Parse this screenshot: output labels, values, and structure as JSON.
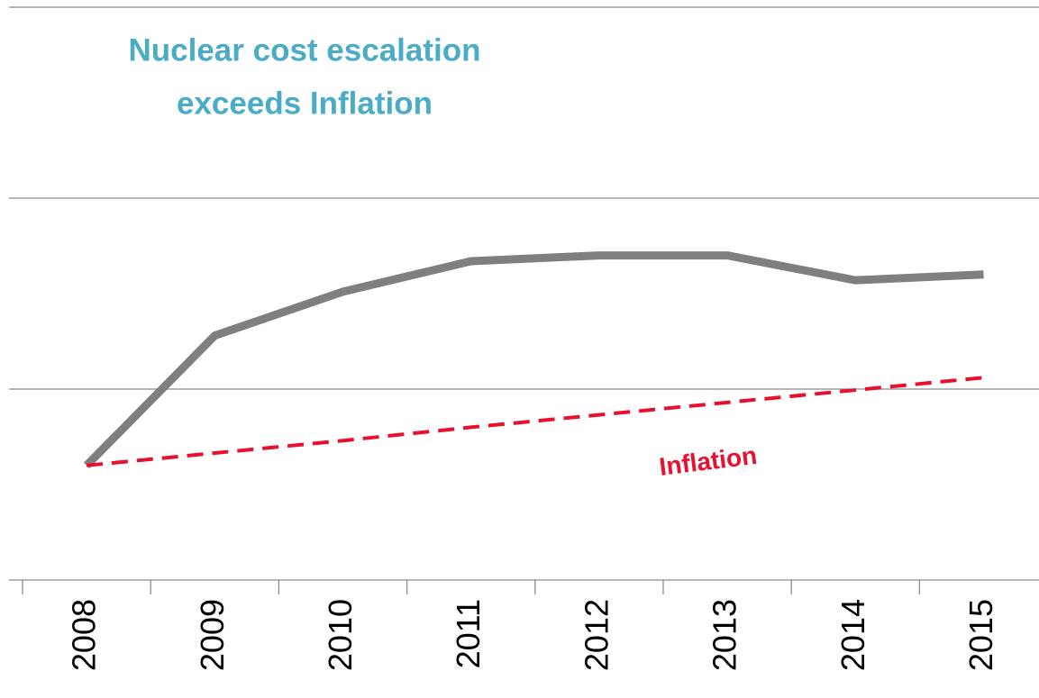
{
  "chart_data": {
    "type": "line",
    "title": [
      "Nuclear cost escalation",
      "exceeds Inflation"
    ],
    "categories": [
      "2008",
      "2009",
      "2010",
      "2011",
      "2012",
      "2013",
      "2014",
      "2015"
    ],
    "series": [
      {
        "color": "#7f7f7f",
        "values": [
          0.6,
          1.28,
          1.51,
          1.67,
          1.7,
          1.7,
          1.57,
          1.6
        ]
      },
      {
        "name": "Inflation",
        "color": "#e8102e",
        "dashed": true,
        "values": [
          0.6,
          0.665,
          0.73,
          0.8,
          0.865,
          0.93,
          0.995,
          1.06
        ]
      }
    ],
    "ylim": [
      0,
      3
    ],
    "yticks": [
      0,
      1,
      2,
      3
    ],
    "grid": true
  }
}
